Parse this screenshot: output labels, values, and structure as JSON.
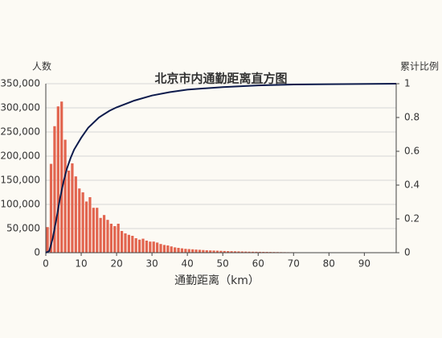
{
  "chart_data": {
    "type": "histogram",
    "title": "北京市内通勤距离直方图",
    "xlabel": "通勤距离（km）",
    "ylabel": "人数",
    "y2label": "累计比例",
    "bins": [
      0,
      1,
      2,
      3,
      4,
      5,
      6,
      7,
      8,
      9,
      10,
      11,
      12,
      13,
      14,
      15,
      16,
      17,
      18,
      19,
      20,
      21,
      22,
      23,
      24,
      25,
      26,
      27,
      28,
      29,
      30,
      31,
      32,
      33,
      34,
      35,
      36,
      37,
      38,
      39,
      40,
      41,
      42,
      43,
      44,
      45,
      46,
      47,
      48,
      49,
      50,
      51,
      52,
      53,
      54,
      55,
      56,
      57,
      58,
      59,
      60,
      61,
      62,
      63,
      64,
      65,
      66,
      67,
      68,
      69,
      70,
      71,
      72,
      73,
      74,
      75,
      76,
      77,
      78,
      79,
      80,
      81,
      82,
      83,
      84,
      85,
      86,
      87,
      88,
      89,
      90,
      91,
      92,
      93,
      94,
      95,
      96,
      97,
      98,
      99
    ],
    "counts": [
      53000,
      184000,
      262000,
      303000,
      313000,
      234000,
      170000,
      185000,
      158000,
      133000,
      125000,
      106000,
      115000,
      93000,
      93000,
      72000,
      78000,
      68000,
      60000,
      55000,
      60000,
      45000,
      40000,
      37000,
      35000,
      30000,
      27000,
      29000,
      25000,
      23000,
      23000,
      21000,
      18000,
      16000,
      15000,
      13000,
      11000,
      10000,
      9000,
      8000,
      7500,
      7000,
      6500,
      6000,
      5500,
      5000,
      4700,
      4400,
      4100,
      3800,
      3500,
      3300,
      3100,
      2900,
      2700,
      2500,
      2300,
      2100,
      2000,
      1900,
      1800,
      1700,
      1600,
      1500,
      1400,
      1300,
      1200,
      1100,
      1000,
      950,
      900,
      850,
      800,
      750,
      700,
      650,
      600,
      550,
      500,
      480,
      460,
      440,
      420,
      400,
      380,
      360,
      340,
      320,
      300,
      280,
      260,
      240,
      220,
      200,
      180,
      160,
      140,
      120,
      100
    ],
    "color": "#e2654f",
    "cumulative": {
      "x": [
        0,
        1,
        2,
        3,
        4,
        5,
        6,
        7,
        8,
        10,
        12,
        15,
        18,
        20,
        25,
        30,
        35,
        40,
        50,
        60,
        70,
        80,
        99
      ],
      "values": [
        0,
        0.01,
        0.09,
        0.2,
        0.32,
        0.42,
        0.5,
        0.56,
        0.61,
        0.68,
        0.74,
        0.8,
        0.84,
        0.86,
        0.9,
        0.93,
        0.95,
        0.965,
        0.98,
        0.99,
        0.995,
        0.997,
        1
      ],
      "color": "#0d1b4c",
      "axis": "y2"
    },
    "xlim": [
      0,
      99
    ],
    "xticks": [
      0,
      10,
      20,
      30,
      40,
      50,
      60,
      70,
      80,
      90
    ],
    "ylim": [
      0,
      350000
    ],
    "yticks": [
      0,
      {
        "value": 50000,
        "label": "50,000"
      },
      {
        "value": 100000,
        "label": "100,000"
      },
      {
        "value": 150000,
        "label": "150,000"
      },
      {
        "value": 200000,
        "label": "200,000"
      },
      {
        "value": 250000,
        "label": "250,000"
      },
      {
        "value": 300000,
        "label": "300,000"
      },
      {
        "value": 350000,
        "label": "350,000"
      }
    ],
    "y2lim": [
      0,
      1
    ],
    "y2ticks": [
      0,
      0.2,
      0.4,
      0.6,
      0.8,
      1
    ],
    "grid": true
  }
}
